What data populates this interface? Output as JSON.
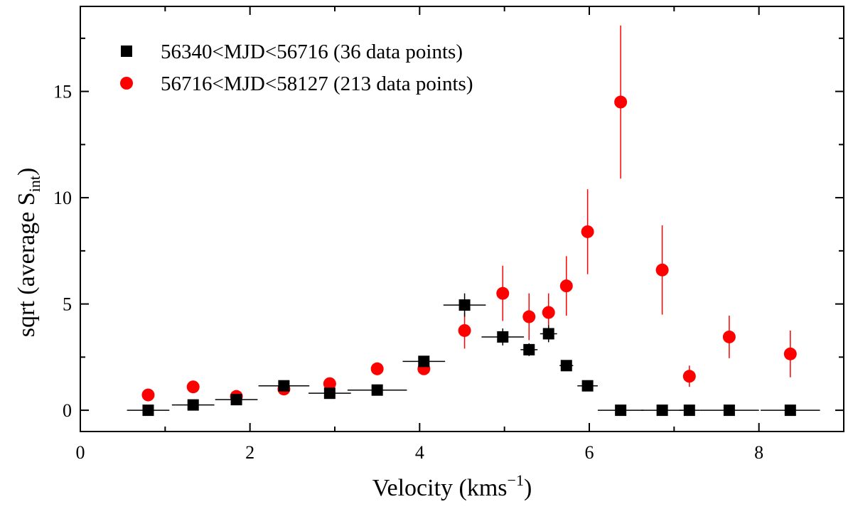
{
  "chart_data": {
    "type": "scatter",
    "xlabel": "Velocity (kms",
    "xlabel_sup": "−1",
    "xlabel_end": ")",
    "ylabel": "sqrt (average S",
    "ylabel_sub": "int",
    "ylabel_end": ")",
    "xlim": [
      0,
      9
    ],
    "ylim": [
      -1,
      19
    ],
    "xticks": [
      0,
      2,
      4,
      6,
      8
    ],
    "yticks": [
      0,
      5,
      10,
      15
    ],
    "x_minor_step": 1,
    "y_minor_step": 2.5,
    "grid": false,
    "legend_position": "top-left",
    "series": [
      {
        "name": "56340<MJD<56716 (36 data points)",
        "marker": "square",
        "color": "#000000",
        "points": [
          {
            "x": 0.8,
            "y": 0.0,
            "xerr": 0.25,
            "yerr": 0
          },
          {
            "x": 1.33,
            "y": 0.25,
            "xerr": 0.25,
            "yerr": 0
          },
          {
            "x": 1.84,
            "y": 0.5,
            "xerr": 0.25,
            "yerr": 0
          },
          {
            "x": 2.4,
            "y": 1.15,
            "xerr": 0.3,
            "yerr": 0
          },
          {
            "x": 2.94,
            "y": 0.8,
            "xerr": 0.25,
            "yerr": 0
          },
          {
            "x": 3.5,
            "y": 0.95,
            "xerr": 0.35,
            "yerr": 0
          },
          {
            "x": 4.05,
            "y": 2.3,
            "xerr": 0.25,
            "yerr": 0
          },
          {
            "x": 4.53,
            "y": 4.95,
            "xerr": 0.25,
            "yerr": 0.55
          },
          {
            "x": 4.98,
            "y": 3.45,
            "xerr": 0.25,
            "yerr": 0.4
          },
          {
            "x": 5.29,
            "y": 2.85,
            "xerr": 0.1,
            "yerr": 0.3
          },
          {
            "x": 5.52,
            "y": 3.6,
            "xerr": 0.1,
            "yerr": 0.4
          },
          {
            "x": 5.73,
            "y": 2.1,
            "xerr": 0.08,
            "yerr": 0.2
          },
          {
            "x": 5.98,
            "y": 1.15,
            "xerr": 0.12,
            "yerr": 0
          },
          {
            "x": 6.37,
            "y": 0.0,
            "xerr": 0.27,
            "yerr": 0
          },
          {
            "x": 6.86,
            "y": 0.0,
            "xerr": 0.25,
            "yerr": 0
          },
          {
            "x": 7.18,
            "y": 0.0,
            "xerr": 0.12,
            "yerr": 0
          },
          {
            "x": 7.65,
            "y": 0.0,
            "xerr": 0.35,
            "yerr": 0
          },
          {
            "x": 8.37,
            "y": 0.0,
            "xerr": 0.35,
            "yerr": 0
          }
        ]
      },
      {
        "name": "56716<MJD<58127 (213 data points)",
        "marker": "circle",
        "color": "#ff0000",
        "points": [
          {
            "x": 0.8,
            "y": 0.72,
            "xerr": 0,
            "yerr": 0
          },
          {
            "x": 1.33,
            "y": 1.1,
            "xerr": 0,
            "yerr": 0
          },
          {
            "x": 1.84,
            "y": 0.65,
            "xerr": 0,
            "yerr": 0
          },
          {
            "x": 2.4,
            "y": 1.0,
            "xerr": 0,
            "yerr": 0
          },
          {
            "x": 2.94,
            "y": 1.25,
            "xerr": 0,
            "yerr": 0
          },
          {
            "x": 3.5,
            "y": 1.95,
            "xerr": 0,
            "yerr": 0.3
          },
          {
            "x": 4.05,
            "y": 1.95,
            "xerr": 0,
            "yerr": 0
          },
          {
            "x": 4.53,
            "y": 3.75,
            "xerr": 0,
            "yerr": 0.85
          },
          {
            "x": 4.98,
            "y": 5.5,
            "xerr": 0,
            "yerr": 1.3
          },
          {
            "x": 5.29,
            "y": 4.4,
            "xerr": 0,
            "yerr": 1.1
          },
          {
            "x": 5.52,
            "y": 4.6,
            "xerr": 0,
            "yerr": 0.9
          },
          {
            "x": 5.73,
            "y": 5.85,
            "xerr": 0,
            "yerr": 1.4
          },
          {
            "x": 5.98,
            "y": 8.4,
            "xerr": 0,
            "yerr": 2.0
          },
          {
            "x": 6.37,
            "y": 14.5,
            "xerr": 0,
            "yerr": 3.6
          },
          {
            "x": 6.86,
            "y": 6.6,
            "xerr": 0,
            "yerr": 2.1
          },
          {
            "x": 7.18,
            "y": 1.6,
            "xerr": 0,
            "yerr": 0.5
          },
          {
            "x": 7.65,
            "y": 3.45,
            "xerr": 0,
            "yerr": 1.0
          },
          {
            "x": 8.37,
            "y": 2.65,
            "xerr": 0,
            "yerr": 1.1
          }
        ]
      }
    ]
  }
}
